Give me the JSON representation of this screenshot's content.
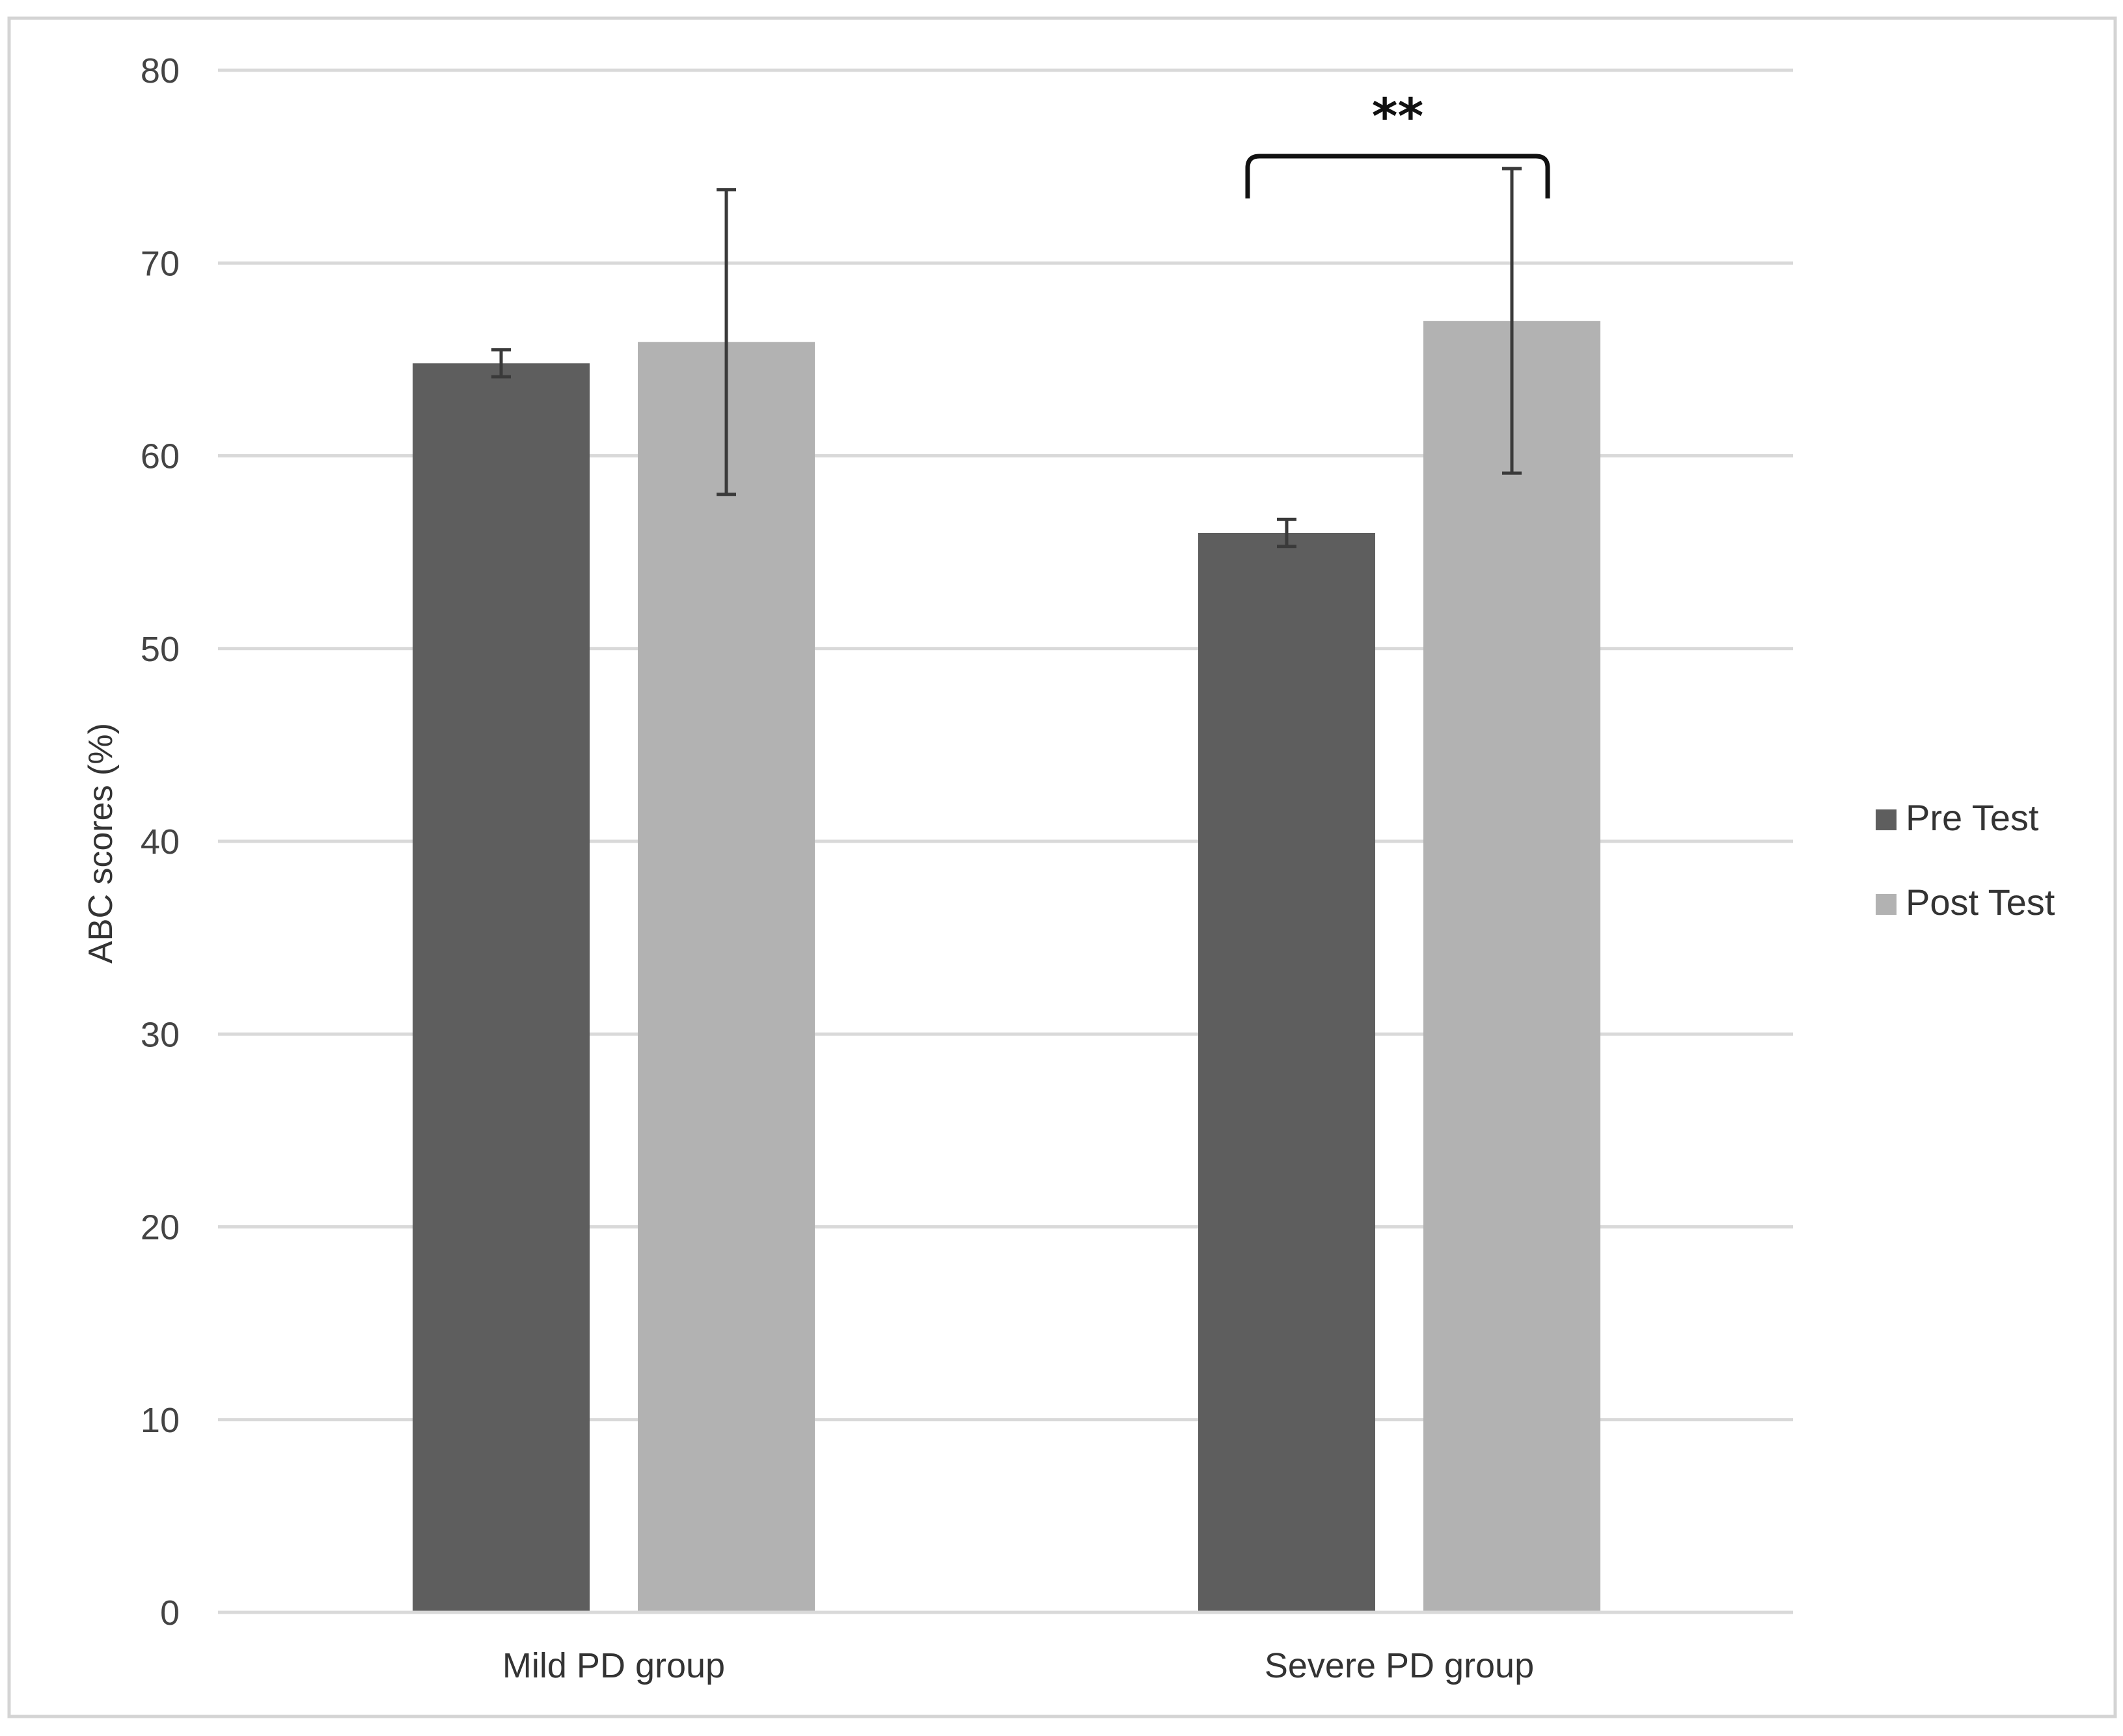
{
  "chart_data": {
    "type": "bar",
    "title": "",
    "xlabel": "",
    "ylabel": "ABC scores (%)",
    "ylim": [
      0,
      80
    ],
    "yticks": [
      0,
      10,
      20,
      30,
      40,
      50,
      60,
      70,
      80
    ],
    "grid": true,
    "legend_position": "right",
    "categories": [
      "Mild PD group",
      "Severe PD group"
    ],
    "series": [
      {
        "name": "Pre Test",
        "color": "#5e5e5e",
        "values": [
          64.8,
          56.0
        ],
        "error": [
          0.7,
          0.7
        ]
      },
      {
        "name": "Post Test",
        "color": "#b2b2b2",
        "values": [
          65.9,
          67.0
        ],
        "error": [
          7.9,
          7.9
        ]
      }
    ],
    "annotations": [
      {
        "text": "**",
        "category": "Severe PD group",
        "between": [
          "Pre Test",
          "Post Test"
        ]
      }
    ]
  }
}
